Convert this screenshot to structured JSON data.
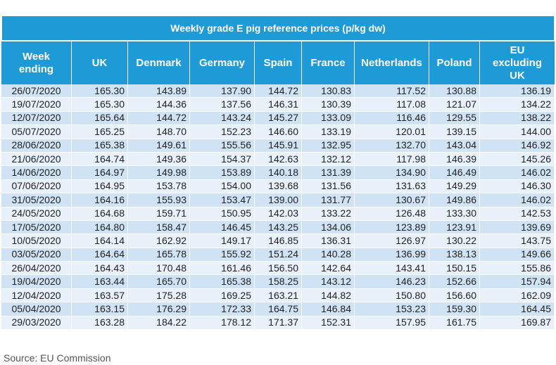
{
  "table": {
    "title": "Weekly grade E pig reference prices (p/kg dw)",
    "columns": [
      [
        "Week",
        "ending"
      ],
      [
        "UK"
      ],
      [
        "Denmark"
      ],
      [
        "Germany"
      ],
      [
        "Spain"
      ],
      [
        "France"
      ],
      [
        "Netherlands"
      ],
      [
        "Poland"
      ],
      [
        "EU",
        "excluding",
        "UK"
      ]
    ],
    "rows": [
      [
        "26/07/2020",
        "165.30",
        "143.89",
        "137.90",
        "144.72",
        "130.83",
        "117.52",
        "130.88",
        "136.19"
      ],
      [
        "19/07/2020",
        "165.30",
        "144.36",
        "137.56",
        "146.31",
        "130.39",
        "117.08",
        "121.07",
        "134.22"
      ],
      [
        "12/07/2020",
        "165.64",
        "144.72",
        "143.24",
        "145.27",
        "133.09",
        "116.46",
        "129.55",
        "138.22"
      ],
      [
        "05/07/2020",
        "165.25",
        "148.70",
        "152.23",
        "146.60",
        "133.19",
        "120.01",
        "139.15",
        "144.00"
      ],
      [
        "28/06/2020",
        "165.38",
        "149.61",
        "155.56",
        "145.91",
        "132.95",
        "132.70",
        "143.04",
        "146.92"
      ],
      [
        "21/06/2020",
        "164.74",
        "149.36",
        "154.37",
        "142.63",
        "132.12",
        "117.98",
        "146.39",
        "145.26"
      ],
      [
        "14/06/2020",
        "164.97",
        "149.98",
        "153.89",
        "140.18",
        "131.39",
        "134.90",
        "146.49",
        "146.02"
      ],
      [
        "07/06/2020",
        "164.95",
        "153.78",
        "154.00",
        "139.68",
        "131.56",
        "131.63",
        "149.29",
        "146.30"
      ],
      [
        "31/05/2020",
        "164.16",
        "155.93",
        "153.47",
        "139.00",
        "131.77",
        "130.67",
        "149.86",
        "146.02"
      ],
      [
        "24/05/2020",
        "164.68",
        "159.71",
        "150.95",
        "142.03",
        "133.22",
        "126.48",
        "133.30",
        "142.53"
      ],
      [
        "17/05/2020",
        "164.80",
        "158.47",
        "146.45",
        "143.25",
        "134.06",
        "123.89",
        "123.91",
        "139.69"
      ],
      [
        "10/05/2020",
        "164.14",
        "162.92",
        "149.17",
        "146.85",
        "136.31",
        "126.97",
        "130.22",
        "143.75"
      ],
      [
        "03/05/2020",
        "164.64",
        "165.78",
        "155.92",
        "151.24",
        "140.28",
        "136.99",
        "138.13",
        "149.66"
      ],
      [
        "26/04/2020",
        "164.43",
        "170.48",
        "161.46",
        "156.50",
        "142.64",
        "143.41",
        "150.15",
        "155.86"
      ],
      [
        "19/04/2020",
        "163.44",
        "165.70",
        "165.38",
        "158.25",
        "143.12",
        "146.23",
        "152.66",
        "157.94"
      ],
      [
        "12/04/2020",
        "163.57",
        "175.28",
        "169.25",
        "163.21",
        "144.82",
        "150.80",
        "156.60",
        "162.09"
      ],
      [
        "05/04/2020",
        "163.15",
        "176.29",
        "172.33",
        "164.75",
        "146.84",
        "153.23",
        "159.30",
        "164.45"
      ],
      [
        "29/03/2020",
        "163.28",
        "184.22",
        "178.12",
        "171.37",
        "152.31",
        "157.95",
        "161.75",
        "169.87"
      ]
    ]
  },
  "footer": {
    "source": "Source: EU Commission"
  }
}
